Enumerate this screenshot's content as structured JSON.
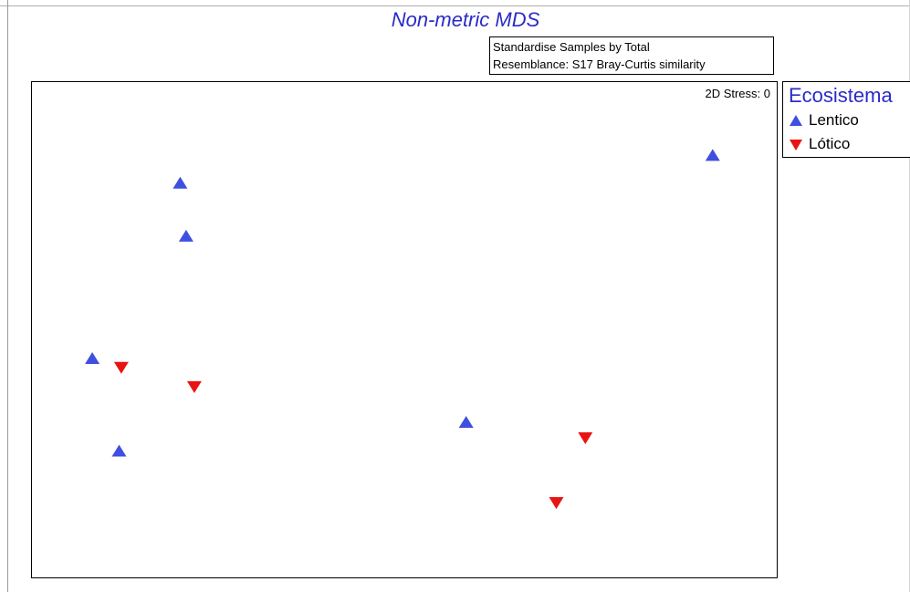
{
  "colors": {
    "title": "#2b2bc8",
    "lentico": "#3f4fe0",
    "lotico": "#e81414",
    "frame": "#000000"
  },
  "chart_data": {
    "type": "scatter",
    "title": "Non-metric MDS",
    "notes": [
      "Standardise Samples by Total",
      "Resemblance: S17 Bray-Curtis similarity"
    ],
    "stress_label": "2D Stress: 0",
    "xlabel": "",
    "ylabel": "",
    "axes_shown": false,
    "grid": false,
    "legend_position": "right-top",
    "legend_title": "Ecosistema",
    "xlim": [
      0,
      100
    ],
    "ylim": [
      0,
      100
    ],
    "series": [
      {
        "name": "Lentico",
        "marker": "triangle-up",
        "color": "#3f4fe0",
        "points": [
          {
            "x": 91.4,
            "y": 85.2
          },
          {
            "x": 19.9,
            "y": 79.6
          },
          {
            "x": 20.7,
            "y": 68.9
          },
          {
            "x": 8.1,
            "y": 44.2
          },
          {
            "x": 58.3,
            "y": 31.3
          },
          {
            "x": 11.7,
            "y": 25.5
          }
        ]
      },
      {
        "name": "Lótico",
        "marker": "triangle-down",
        "color": "#e81414",
        "points": [
          {
            "x": 12.0,
            "y": 42.4
          },
          {
            "x": 21.8,
            "y": 38.5
          },
          {
            "x": 74.3,
            "y": 28.2
          },
          {
            "x": 70.4,
            "y": 15.1
          }
        ]
      }
    ]
  }
}
